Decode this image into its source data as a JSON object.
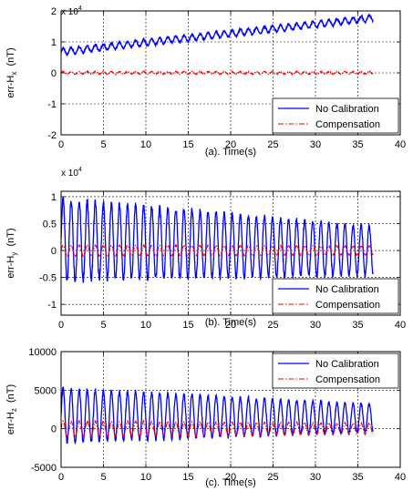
{
  "figure": {
    "background": "#ffffff",
    "series_colors": {
      "no_calibration": "#0000ff",
      "compensation": "#ff0000"
    }
  },
  "chart_data": [
    {
      "type": "line",
      "xlabel": "(a). Time(s)",
      "ylabel": "err-Hx  (nT)",
      "ylabel_parts": {
        "prefix": "err-H",
        "sub": "x",
        "suffix": "  (nT)"
      },
      "xlim": [
        0,
        40
      ],
      "ylim": [
        -2,
        2
      ],
      "y_multiplier": "x 10",
      "y_multiplier_exp": "4",
      "x_ticks": [
        "0",
        "5",
        "10",
        "15",
        "20",
        "25",
        "30",
        "35",
        "40"
      ],
      "y_ticks": [
        "-2",
        "-1",
        "0",
        "1",
        "2"
      ],
      "grid": true,
      "legend": {
        "position": "bottom-right",
        "entries": [
          "No Calibration",
          "Compensation"
        ]
      },
      "series": [
        {
          "name": "No Calibration",
          "color": "#0000ff",
          "style": "solid",
          "model": {
            "x_end": 36.8,
            "start": 0.68,
            "end": 1.77,
            "amplitude": 0.1,
            "period": 0.95
          }
        },
        {
          "name": "Compensation",
          "color": "#ff0000",
          "style": "dash-dot",
          "model": {
            "x_end": 36.8,
            "start": 0.0,
            "end": 0.0,
            "amplitude": 0.04,
            "period": 0.95
          }
        }
      ]
    },
    {
      "type": "line",
      "xlabel": "(b). Time(s)",
      "ylabel": "err-Hy  (nT)",
      "ylabel_parts": {
        "prefix": "err-H",
        "sub": "y",
        "suffix": "  (nT)"
      },
      "xlim": [
        0,
        40
      ],
      "ylim": [
        -1.2,
        1.1
      ],
      "y_multiplier": "x 10",
      "y_multiplier_exp": "4",
      "x_ticks": [
        "0",
        "5",
        "10",
        "15",
        "20",
        "25",
        "30",
        "35",
        "40"
      ],
      "y_ticks": [
        "-1",
        "-0.5",
        "0",
        "0.5",
        "1"
      ],
      "grid": true,
      "legend": {
        "position": "bottom-right",
        "entries": [
          "No Calibration",
          "Compensation"
        ]
      },
      "series": [
        {
          "name": "No Calibration",
          "color": "#0000ff",
          "style": "solid",
          "model": {
            "x_end": 36.8,
            "center_start": 0.2,
            "center_end": 0.0,
            "amp_start": 0.75,
            "amp_end": 0.45,
            "period": 0.95
          }
        },
        {
          "name": "Compensation",
          "color": "#ff0000",
          "style": "dash-dot",
          "model": {
            "x_end": 36.8,
            "center_start": 0.0,
            "center_end": 0.0,
            "amp_start": 0.1,
            "amp_end": 0.08,
            "period": 0.95
          }
        }
      ]
    },
    {
      "type": "line",
      "xlabel": "(c). Time(s)",
      "ylabel": "err-Hz  (nT)",
      "ylabel_parts": {
        "prefix": "err-H",
        "sub": "z",
        "suffix": "  (nT)"
      },
      "xlim": [
        0,
        40
      ],
      "ylim": [
        -5000,
        10000
      ],
      "y_multiplier": "",
      "y_multiplier_exp": "",
      "x_ticks": [
        "0",
        "5",
        "10",
        "15",
        "20",
        "25",
        "30",
        "35",
        "40"
      ],
      "y_ticks": [
        "-5000",
        "0",
        "5000",
        "10000"
      ],
      "grid": true,
      "legend": {
        "position": "top-right",
        "entries": [
          "No Calibration",
          "Compensation"
        ]
      },
      "series": [
        {
          "name": "No Calibration",
          "color": "#0000ff",
          "style": "solid",
          "model": {
            "x_end": 36.8,
            "center_start": 1700,
            "center_end": 1400,
            "amp_start": 3500,
            "amp_end": 1800,
            "period": 0.95
          }
        },
        {
          "name": "Compensation",
          "color": "#ff0000",
          "style": "dash-dot",
          "model": {
            "x_end": 36.8,
            "center_start": 0,
            "center_end": 0,
            "amp_start": 1000,
            "amp_end": 700,
            "period": 0.95
          }
        }
      ]
    }
  ]
}
